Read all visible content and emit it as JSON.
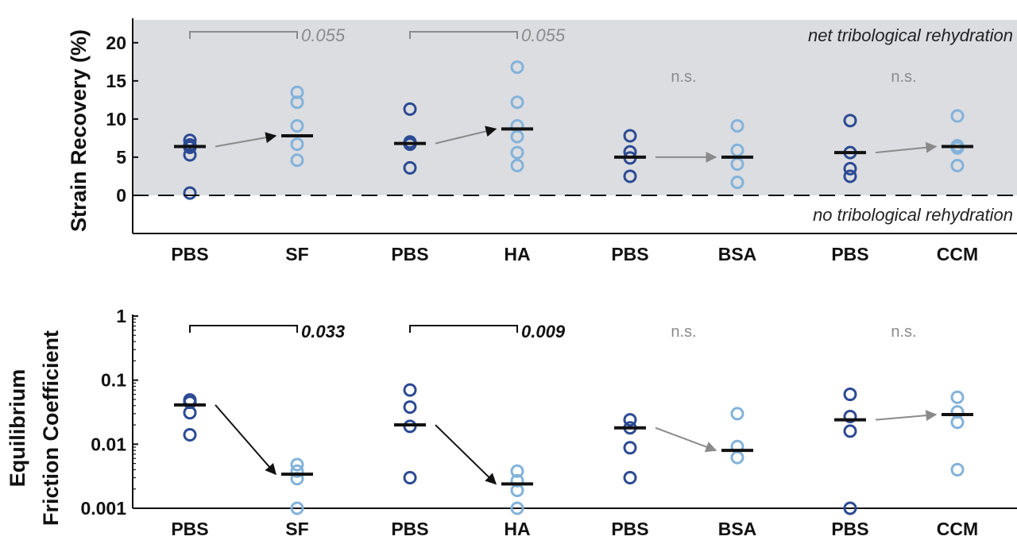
{
  "chart_data": [
    {
      "type": "scatter",
      "ylabel": "Strain Recovery (%)",
      "ylim": [
        -5,
        23
      ],
      "yticks": [
        0,
        5,
        10,
        15,
        20
      ],
      "grid": false,
      "categories": [
        "PBS",
        "SF",
        "PBS",
        "HA",
        "PBS",
        "BSA",
        "PBS",
        "CCM"
      ],
      "annotations": {
        "top_region": "net tribological rehydration",
        "bottom_region": "no tribological rehydration"
      },
      "series": [
        {
          "category_index": 0,
          "values": [
            7.2,
            6.6,
            6.3,
            5.3,
            0.3
          ],
          "mean": 6.4
        },
        {
          "category_index": 1,
          "values": [
            13.5,
            12.2,
            9.1,
            6.7,
            4.6
          ],
          "mean": 7.8
        },
        {
          "category_index": 2,
          "values": [
            11.3,
            7.0,
            6.7,
            3.6
          ],
          "mean": 6.8
        },
        {
          "category_index": 3,
          "values": [
            16.8,
            12.2,
            9.1,
            7.7,
            5.6,
            3.9
          ],
          "mean": 8.7
        },
        {
          "category_index": 4,
          "values": [
            7.8,
            5.7,
            4.9,
            2.5
          ],
          "mean": 5.0
        },
        {
          "category_index": 5,
          "values": [
            9.1,
            5.9,
            4.1,
            1.7
          ],
          "mean": 5.0
        },
        {
          "category_index": 6,
          "values": [
            9.8,
            5.6,
            3.5,
            2.5
          ],
          "mean": 5.6
        },
        {
          "category_index": 7,
          "values": [
            10.4,
            6.5,
            6.2,
            3.9
          ],
          "mean": 6.4
        }
      ],
      "comparisons": [
        {
          "from": 0,
          "to": 1,
          "label": "0.055",
          "bracket": true,
          "significant": false
        },
        {
          "from": 2,
          "to": 3,
          "label": "0.055",
          "bracket": true,
          "significant": false
        },
        {
          "from": 4,
          "to": 5,
          "label": "n.s.",
          "bracket": false,
          "significant": false
        },
        {
          "from": 6,
          "to": 7,
          "label": "n.s.",
          "bracket": false,
          "significant": false
        }
      ]
    },
    {
      "type": "scatter",
      "ylabel": "Equilibrium Friction Coefficient",
      "ylabel_lines": [
        "Equilibrium",
        "Friction Coefficient"
      ],
      "yscale": "log",
      "ylim": [
        0.001,
        1
      ],
      "yticks": [
        0.001,
        0.01,
        0.1,
        1
      ],
      "yticklabels": [
        "0.001",
        "0.01",
        "0.1",
        "1"
      ],
      "grid": false,
      "categories": [
        "PBS",
        "SF",
        "PBS",
        "HA",
        "PBS",
        "BSA",
        "PBS",
        "CCM"
      ],
      "series": [
        {
          "category_index": 0,
          "values": [
            0.049,
            0.045,
            0.031,
            0.014
          ],
          "mean": 0.041
        },
        {
          "category_index": 1,
          "values": [
            0.0048,
            0.0038,
            0.0029,
            0.001
          ],
          "mean": 0.0034
        },
        {
          "category_index": 2,
          "values": [
            0.07,
            0.038,
            0.019,
            0.003
          ],
          "mean": 0.02
        },
        {
          "category_index": 3,
          "values": [
            0.0038,
            0.0027,
            0.0019,
            0.001
          ],
          "mean": 0.0024
        },
        {
          "category_index": 4,
          "values": [
            0.024,
            0.018,
            0.0088,
            0.003
          ],
          "mean": 0.018
        },
        {
          "category_index": 5,
          "values": [
            0.03,
            0.0092,
            0.0062
          ],
          "mean": 0.008
        },
        {
          "category_index": 6,
          "values": [
            0.06,
            0.027,
            0.016,
            0.001
          ],
          "mean": 0.024
        },
        {
          "category_index": 7,
          "values": [
            0.054,
            0.032,
            0.022,
            0.004
          ],
          "mean": 0.029
        }
      ],
      "comparisons": [
        {
          "from": 0,
          "to": 1,
          "label": "0.033",
          "bracket": true,
          "significant": true
        },
        {
          "from": 2,
          "to": 3,
          "label": "0.009",
          "bracket": true,
          "significant": true
        },
        {
          "from": 4,
          "to": 5,
          "label": "n.s.",
          "bracket": false,
          "significant": false
        },
        {
          "from": 6,
          "to": 7,
          "label": "n.s.",
          "bracket": false,
          "significant": false
        }
      ]
    }
  ],
  "colors": {
    "pbs_marker": "#2b4a93",
    "treatment_marker": "#82b2da",
    "mean_bar": "#111111",
    "shaded_region": "#dcdde1",
    "significant": "#111111",
    "not_significant": "#8a8a8a"
  }
}
